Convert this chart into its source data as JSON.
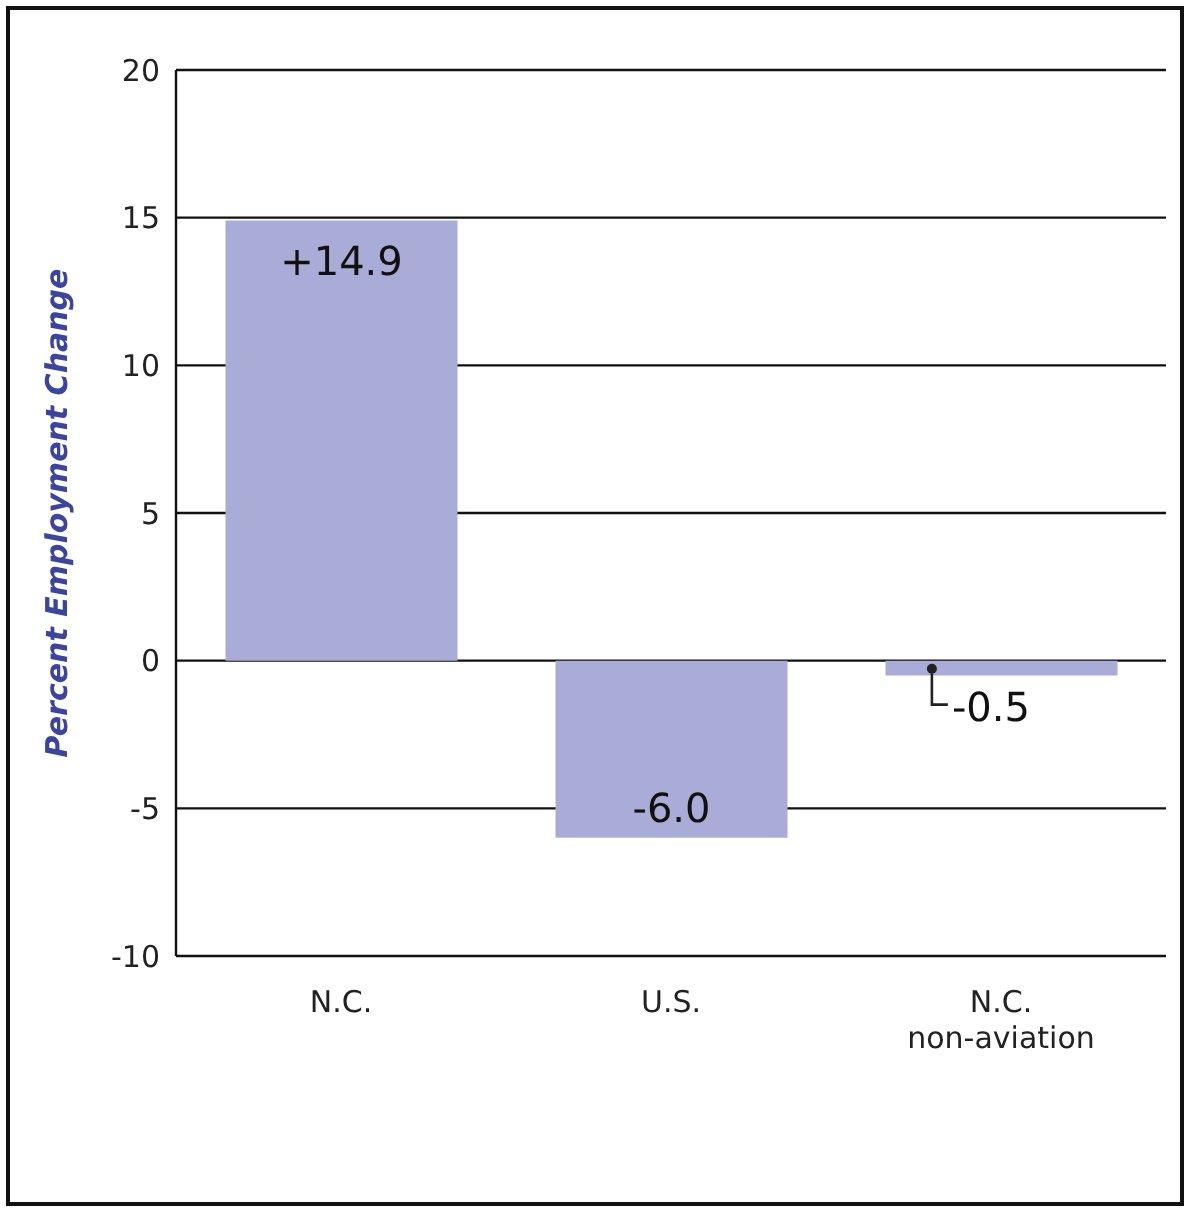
{
  "chart_data": {
    "type": "bar",
    "ylabel": "Percent Employment Change",
    "categories": [
      "N.C.",
      "U.S.",
      "N.C. non-aviation"
    ],
    "values": [
      14.9,
      -6.0,
      -0.5
    ],
    "value_labels": [
      "+14.9",
      "-6.0",
      "-0.5"
    ],
    "color": "#a9acd6",
    "ylim": [
      -10,
      20
    ],
    "yticks": [
      -10,
      -5,
      0,
      5,
      10,
      15,
      20
    ],
    "grid": "y"
  }
}
